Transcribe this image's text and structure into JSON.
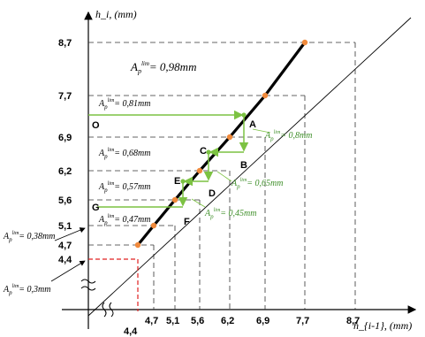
{
  "axes": {
    "y_label": "h_i, (mm)",
    "x_label": "h_{i-1}, (mm)"
  },
  "ticks": {
    "y": [
      "8,7",
      "7,7",
      "6,9",
      "6,2",
      "5,6",
      "5,1",
      "4,7",
      "4,4"
    ],
    "x": [
      "4,7",
      "5,1",
      "5,6",
      "6,2",
      "6,9",
      "7,7",
      "8,7",
      "4,4"
    ]
  },
  "annotations": {
    "ap_098": "= 0,98mm",
    "ap_081": "= 0,81mm",
    "ap_068": "= 0,68mm",
    "ap_057": "= 0,57mm",
    "ap_047": "= 0,47mm",
    "ap_038": "= 0,38mm",
    "ap_03": "= 0,3mm",
    "ap_08": "= 0,8mm",
    "ap_065": "= 0,65mm",
    "ap_045": "= 0,45mm"
  },
  "points": [
    "O",
    "A",
    "B",
    "C",
    "D",
    "E",
    "F",
    "G"
  ],
  "colors": {
    "curve": "#000000",
    "markers": "#f08a3c",
    "construction": "#7cc242",
    "green_text": "#3f8f2a",
    "red_dashed": "#e02020"
  },
  "chart_data": {
    "type": "line",
    "x_label": "h_{i-1}, (mm)",
    "y_label": "h_i, (mm)",
    "series": [
      {
        "x": [
          4.4,
          4.7,
          5.1,
          5.6,
          6.2,
          6.9,
          7.7
        ],
        "y": [
          4.7,
          5.1,
          5.6,
          6.2,
          6.9,
          7.7,
          8.7
        ]
      }
    ]
  }
}
